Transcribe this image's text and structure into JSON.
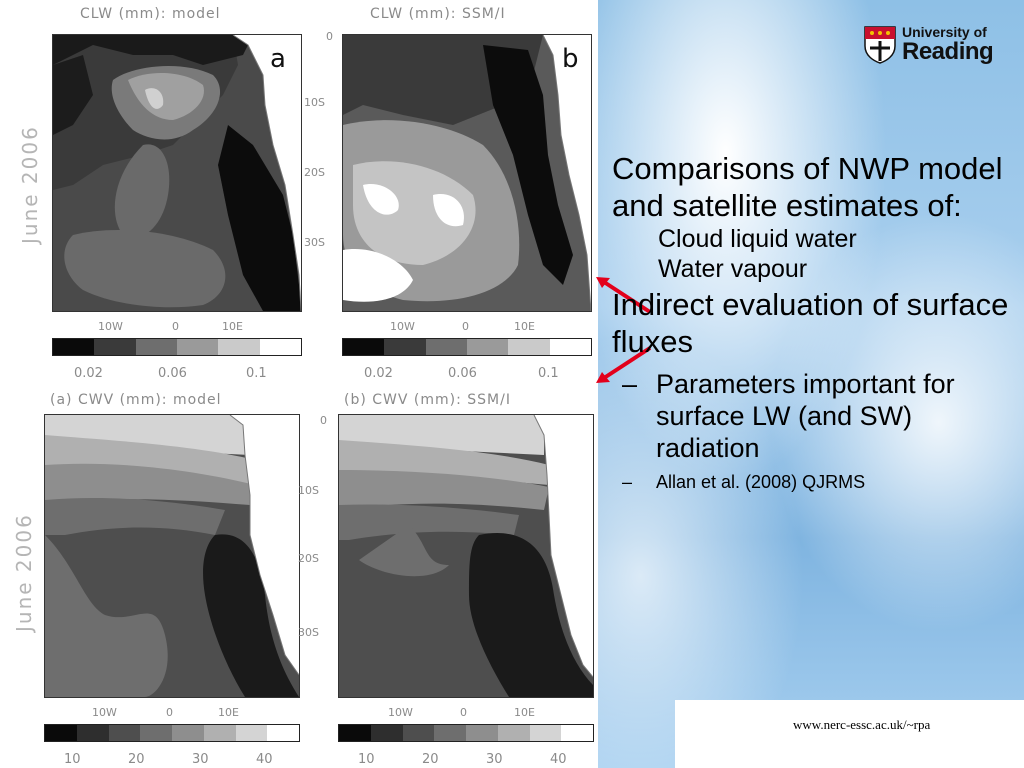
{
  "panels": {
    "clw_model": {
      "title": "CLW (mm): model",
      "label": "a"
    },
    "clw_ssmi": {
      "title": "CLW (mm): SSM/I",
      "label": "b"
    },
    "cwv_model": {
      "title": "(a) CWV (mm): model"
    },
    "cwv_ssmi": {
      "title": "(b) CWV (mm): SSM/I"
    }
  },
  "side_label_top": "June 2006",
  "side_label_bottom": "June 2006",
  "lat_ticks": [
    "0",
    "10S",
    "20S",
    "30S"
  ],
  "lon_ticks": [
    "10W",
    "0",
    "10E"
  ],
  "clw_scale": [
    "0.02",
    "0.06",
    "0.1"
  ],
  "cwv_scale": [
    "10",
    "20",
    "30",
    "40"
  ],
  "clw_colors": [
    "#0a0a0a",
    "#3a3a3a",
    "#6e6e6e",
    "#9a9a9a",
    "#cacaca",
    "#ffffff"
  ],
  "cwv_colors": [
    "#0a0a0a",
    "#2e2e2e",
    "#4e4e4e",
    "#6e6e6e",
    "#8e8e8e",
    "#b0b0b0",
    "#d4d4d4",
    "#ffffff"
  ],
  "logo": {
    "line1": "University of",
    "line2": "Reading"
  },
  "bullets": {
    "main1": "Comparisons of NWP model and satellite estimates of:",
    "sub1": "Cloud liquid water",
    "sub2": "Water vapour",
    "main2": "Indirect evaluation of surface fluxes",
    "dash1": "Parameters important for surface LW (and SW) radiation",
    "dash2": "Allan et al. (2008) QJRMS",
    "dash_symbol": "–"
  },
  "url": "www.nerc-essc.ac.uk/~rpa"
}
